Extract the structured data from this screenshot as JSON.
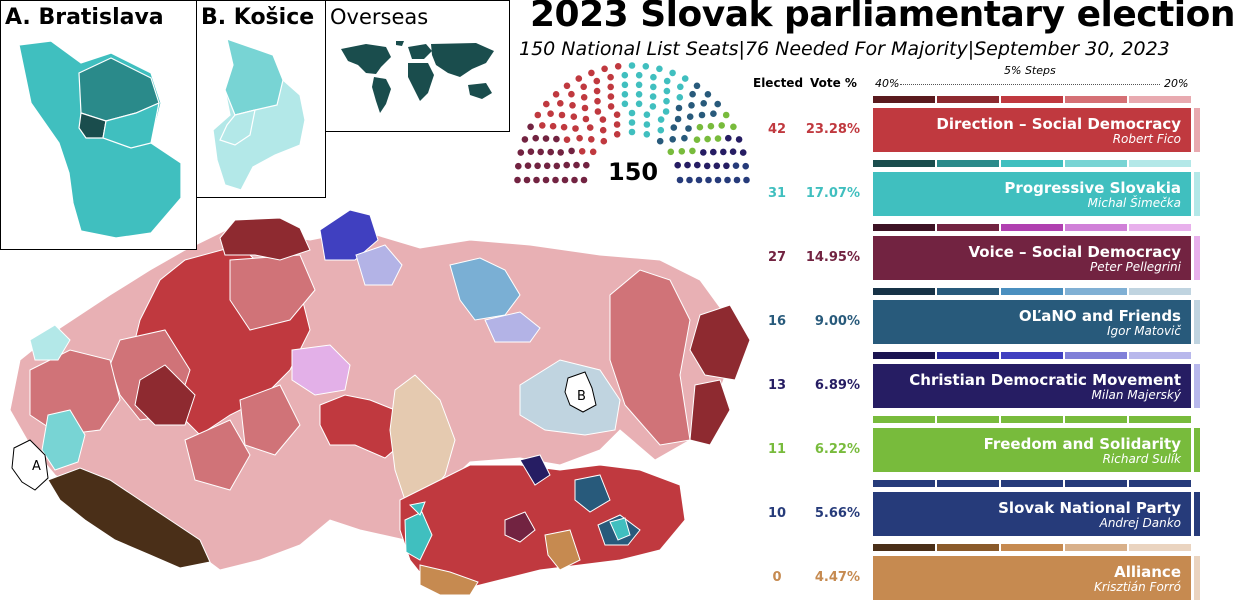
{
  "title": "2023 Slovak parliamentary election",
  "subtitle": "150 National List Seats|76 Needed For Majority|September 30, 2023",
  "insets": {
    "bratislava": "A. Bratislava",
    "kosice": "B. Košice",
    "overseas": "Overseas"
  },
  "map_markers": {
    "a": "A",
    "b": "B"
  },
  "headers": {
    "elected": "Elected",
    "vote": "Vote %"
  },
  "scale": {
    "left": "40%",
    "right": "20%",
    "steps": "5% Steps"
  },
  "seat_total": "150",
  "parties": [
    {
      "name": "Direction – Social Democracy",
      "leader": "Robert Fico",
      "seats": "42",
      "vote": "23.28%",
      "color": "#c0393f",
      "scale": [
        "#5a1a1e",
        "#8e2a30",
        "#c0393f",
        "#d57075",
        "#e8aab0"
      ]
    },
    {
      "name": "Progressive Slovakia",
      "leader": "Michal Šimečka",
      "seats": "31",
      "vote": "17.07%",
      "color": "#40bfbf",
      "scale": [
        "#1a4d4d",
        "#2a8a8a",
        "#40bfbf",
        "#78d4d4",
        "#b3e8e8"
      ]
    },
    {
      "name": "Voice – Social Democracy",
      "leader": "Peter Pellegrini",
      "seats": "27",
      "vote": "14.95%",
      "color": "#722341",
      "scale": [
        "#3d1224",
        "#722341",
        "#b040b0",
        "#d080d8",
        "#e8b0ec"
      ]
    },
    {
      "name": "OĽaNO and Friends",
      "leader": "Igor Matovič",
      "seats": "16",
      "vote": "9.00%",
      "color": "#285a7b",
      "scale": [
        "#163246",
        "#285a7b",
        "#4a8fbf",
        "#80b0d4",
        "#c0d4e0"
      ]
    },
    {
      "name": "Christian Democratic Movement",
      "leader": "Milan Majerský",
      "seats": "13",
      "vote": "6.89%",
      "color": "#261d63",
      "scale": [
        "#1a1450",
        "#2a2a9a",
        "#4040c0",
        "#8080d8",
        "#b8b8ec"
      ]
    },
    {
      "name": "Freedom and Solidarity",
      "leader": "Richard Sulík",
      "seats": "11",
      "vote": "6.22%",
      "color": "#78bb3c",
      "scale": [
        "#78bb3c",
        "#78bb3c",
        "#78bb3c",
        "#78bb3c",
        "#78bb3c"
      ]
    },
    {
      "name": "Slovak National Party",
      "leader": "Andrej Danko",
      "seats": "10",
      "vote": "5.66%",
      "color": "#263b7a",
      "scale": [
        "#263b7a",
        "#263b7a",
        "#263b7a",
        "#263b7a",
        "#263b7a"
      ]
    },
    {
      "name": "Alliance",
      "leader": "Krisztián Forró",
      "seats": "0",
      "vote": "4.47%",
      "color": "#c68a50",
      "scale": [
        "#4a2f18",
        "#8a5a2a",
        "#c68a50",
        "#d8b08a",
        "#ead4c0"
      ]
    }
  ]
}
